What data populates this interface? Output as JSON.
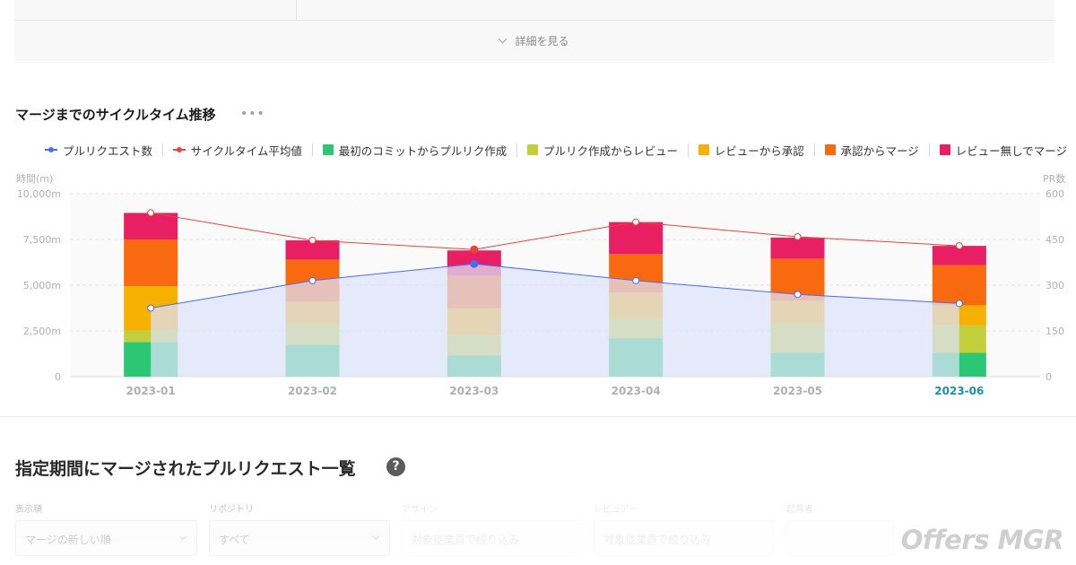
{
  "top_card": {
    "details_label": "詳細を見る"
  },
  "section": {
    "title": "マージまでのサイクルタイム推移",
    "more_icon": "ellipsis-icon"
  },
  "legend": [
    {
      "label": "プルリクエスト数",
      "kind": "line",
      "color": "#4a6cf0"
    },
    {
      "label": "サイクルタイム平均値",
      "kind": "line",
      "color": "#e8453c"
    },
    {
      "label": "最初のコミットからプルリク作成",
      "kind": "square",
      "color": "#2bc774"
    },
    {
      "label": "プルリク作成からレビュー",
      "kind": "square",
      "color": "#c3cf3a"
    },
    {
      "label": "レビューから承認",
      "kind": "square",
      "color": "#f5b000"
    },
    {
      "label": "承認からマージ",
      "kind": "square",
      "color": "#f96a10"
    },
    {
      "label": "レビュー無しでマージ",
      "kind": "square",
      "color": "#e81f63"
    }
  ],
  "chart_data": {
    "type": "bar",
    "stacked": true,
    "categories": [
      "2023-01",
      "2023-02",
      "2023-03",
      "2023-04",
      "2023-05",
      "2023-06"
    ],
    "highlighted_category": "2023-06",
    "y_left": {
      "label": "時間(m)",
      "ticks": [
        "0",
        "2,500m",
        "5,000m",
        "7,500m",
        "10,000m"
      ],
      "range": [
        0,
        10000
      ]
    },
    "y_right": {
      "label": "PR数",
      "ticks": [
        "0",
        "150",
        "300",
        "450",
        "600"
      ],
      "range": [
        0,
        600
      ]
    },
    "series": [
      {
        "name": "最初のコミットからプルリク作成",
        "color": "#2bc774",
        "values": [
          1900,
          1750,
          1150,
          2100,
          1300,
          1300
        ]
      },
      {
        "name": "プルリク作成からレビュー",
        "color": "#c3cf3a",
        "values": [
          650,
          1150,
          1150,
          1100,
          1600,
          1500
        ]
      },
      {
        "name": "レビューから承認",
        "color": "#f5b000",
        "values": [
          2400,
          1200,
          1450,
          1400,
          1250,
          1100
        ]
      },
      {
        "name": "承認からマージ",
        "color": "#f96a10",
        "values": [
          2550,
          2300,
          1750,
          2100,
          2300,
          2200
        ]
      },
      {
        "name": "レビュー無しでマージ",
        "color": "#e81f63",
        "values": [
          1450,
          1050,
          1400,
          1750,
          1150,
          1050
        ]
      }
    ],
    "lines": [
      {
        "name": "サイクルタイム平均値",
        "axis": "left",
        "color": "#e8453c",
        "values": [
          8950,
          7450,
          6950,
          8450,
          7650,
          7150
        ]
      },
      {
        "name": "プルリクエスト数",
        "axis": "right",
        "color": "#4a6cf0",
        "fill": "#dde3fb",
        "values": [
          225,
          315,
          370,
          315,
          270,
          240
        ]
      }
    ],
    "grid": true
  },
  "list": {
    "title": "指定期間にマージされたプルリクエスト一覧",
    "help_icon": "question-circle-icon"
  },
  "filters": [
    {
      "label": "表示順",
      "value": "マージの新しい順"
    },
    {
      "label": "リポジトリ",
      "value": "すべて"
    },
    {
      "label": "アサイン",
      "value": "対象従業員で絞り込み"
    },
    {
      "label": "レビュアー",
      "value": "対象従業員で絞り込み"
    },
    {
      "label": "起票者",
      "value": ""
    }
  ],
  "logo": {
    "text": "Offers MGR"
  }
}
